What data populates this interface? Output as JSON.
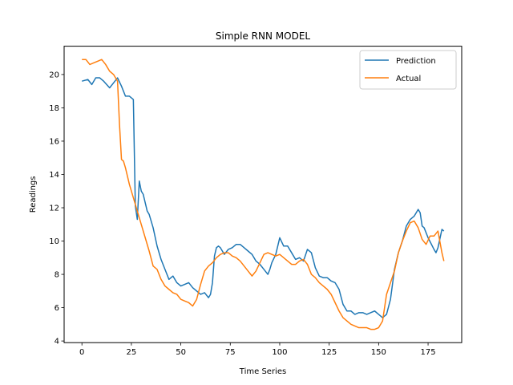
{
  "chart_data": {
    "type": "line",
    "title": "Simple RNN MODEL",
    "xlabel": "Time Series",
    "ylabel": "Readings",
    "xlim": [
      -9,
      192
    ],
    "ylim": [
      3.9,
      21.7
    ],
    "xticks": [
      0,
      25,
      50,
      75,
      100,
      125,
      150,
      175
    ],
    "yticks": [
      4,
      6,
      8,
      10,
      12,
      14,
      16,
      18,
      20
    ],
    "grid": false,
    "legend": "top-right",
    "series": [
      {
        "name": "Prediction",
        "color": "#1f77b4",
        "x": [
          0,
          3,
          5,
          7,
          9,
          11,
          14,
          16,
          18,
          20,
          22,
          24,
          26,
          27,
          28,
          29,
          30,
          31,
          33,
          34,
          36,
          38,
          40,
          42,
          44,
          46,
          48,
          50,
          54,
          56,
          60,
          62,
          64,
          65,
          66,
          67,
          68,
          69,
          70,
          72,
          74,
          76,
          78,
          80,
          82,
          84,
          86,
          88,
          90,
          92,
          94,
          95,
          96,
          98,
          100,
          102,
          104,
          106,
          108,
          110,
          112,
          114,
          116,
          118,
          120,
          122,
          124,
          126,
          128,
          130,
          132,
          134,
          136,
          138,
          140,
          142,
          144,
          146,
          148,
          150,
          152,
          154,
          156,
          158,
          160,
          162,
          164,
          166,
          168,
          170,
          171,
          172,
          173,
          175,
          178,
          179,
          180,
          182,
          183
        ],
        "y": [
          19.6,
          19.7,
          19.4,
          19.8,
          19.8,
          19.6,
          19.2,
          19.5,
          19.8,
          19.3,
          18.7,
          18.7,
          18.5,
          12.1,
          11.3,
          13.6,
          13.0,
          12.8,
          11.8,
          11.6,
          10.8,
          9.7,
          8.9,
          8.3,
          7.7,
          7.9,
          7.5,
          7.3,
          7.5,
          7.2,
          6.8,
          6.9,
          6.6,
          6.8,
          7.5,
          9.1,
          9.6,
          9.7,
          9.6,
          9.2,
          9.5,
          9.6,
          9.8,
          9.8,
          9.6,
          9.4,
          9.2,
          8.8,
          8.6,
          8.3,
          8.0,
          8.3,
          8.7,
          9.2,
          10.2,
          9.7,
          9.7,
          9.3,
          8.9,
          9.0,
          8.8,
          9.5,
          9.3,
          8.4,
          7.9,
          7.8,
          7.8,
          7.6,
          7.5,
          7.1,
          6.2,
          5.8,
          5.8,
          5.6,
          5.7,
          5.7,
          5.6,
          5.7,
          5.8,
          5.6,
          5.4,
          5.6,
          6.5,
          8.3,
          9.3,
          10.0,
          10.9,
          11.3,
          11.5,
          11.9,
          11.7,
          10.9,
          10.8,
          10.2,
          9.5,
          9.3,
          9.6,
          10.7,
          10.6
        ]
      },
      {
        "name": "Actual",
        "color": "#ff7f0e",
        "x": [
          0,
          2,
          4,
          6,
          8,
          10,
          12,
          14,
          16,
          18,
          19,
          20,
          21,
          22,
          23,
          24,
          26,
          28,
          30,
          32,
          34,
          36,
          38,
          40,
          42,
          44,
          46,
          48,
          50,
          52,
          54,
          56,
          58,
          60,
          62,
          64,
          66,
          68,
          70,
          72,
          74,
          76,
          78,
          80,
          82,
          84,
          86,
          88,
          90,
          92,
          94,
          96,
          98,
          100,
          102,
          104,
          106,
          108,
          110,
          112,
          114,
          116,
          118,
          120,
          122,
          124,
          126,
          128,
          130,
          132,
          134,
          136,
          138,
          140,
          142,
          144,
          146,
          148,
          150,
          152,
          154,
          156,
          158,
          160,
          162,
          164,
          166,
          168,
          170,
          172,
          174,
          176,
          178,
          180,
          182,
          183
        ],
        "y": [
          20.9,
          20.9,
          20.6,
          20.7,
          20.8,
          20.9,
          20.6,
          20.2,
          20.0,
          19.6,
          17.0,
          14.9,
          14.8,
          14.4,
          13.9,
          13.4,
          12.6,
          11.8,
          11.0,
          10.2,
          9.4,
          8.5,
          8.3,
          7.7,
          7.3,
          7.1,
          6.9,
          6.8,
          6.5,
          6.4,
          6.3,
          6.1,
          6.5,
          7.4,
          8.2,
          8.5,
          8.7,
          9.0,
          9.2,
          9.3,
          9.3,
          9.1,
          9.0,
          8.8,
          8.5,
          8.2,
          7.9,
          8.2,
          8.7,
          9.2,
          9.3,
          9.2,
          9.1,
          9.2,
          9.0,
          8.8,
          8.6,
          8.6,
          8.8,
          8.9,
          8.6,
          8.0,
          7.8,
          7.5,
          7.3,
          7.1,
          6.8,
          6.3,
          5.8,
          5.4,
          5.2,
          5.0,
          4.9,
          4.8,
          4.8,
          4.8,
          4.7,
          4.7,
          4.8,
          5.2,
          6.8,
          7.5,
          8.2,
          9.3,
          10.0,
          10.6,
          11.1,
          11.2,
          10.8,
          10.1,
          9.8,
          10.3,
          10.3,
          10.6,
          9.3,
          8.8
        ]
      }
    ]
  }
}
